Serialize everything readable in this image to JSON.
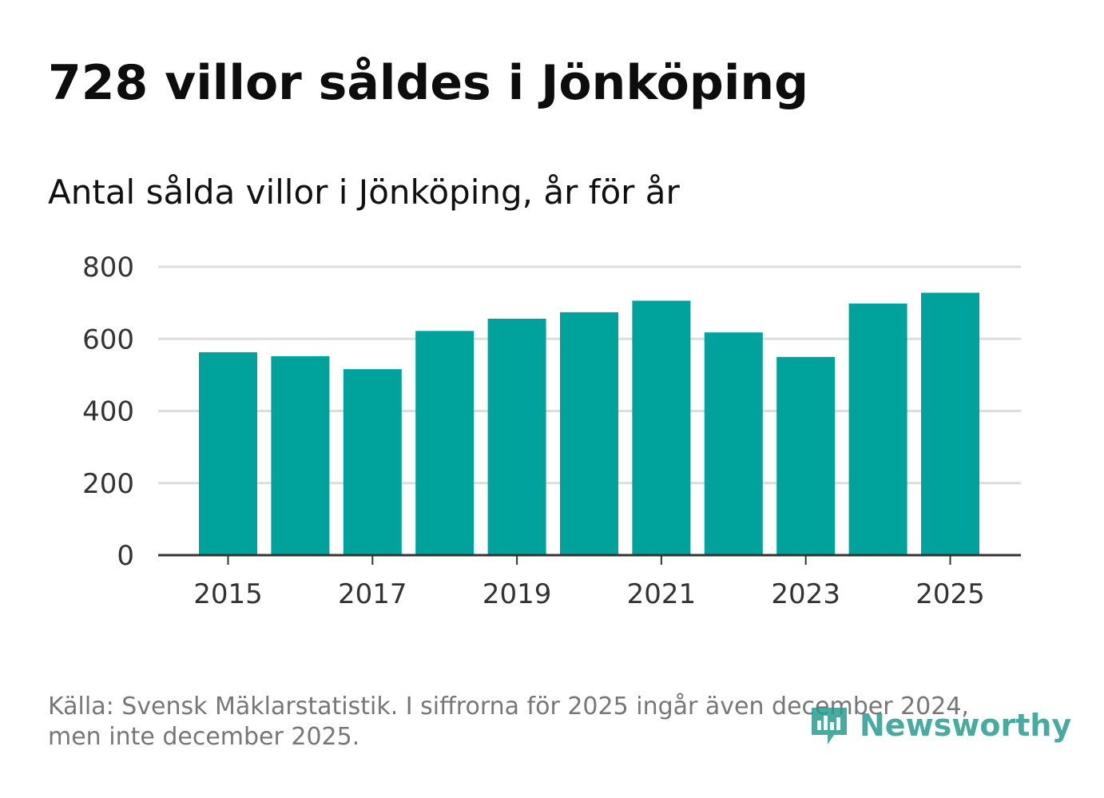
{
  "title": "728 villor såldes i Jönköping",
  "subtitle": "Antal sålda villor i Jönköping, år för år",
  "source": "Källa: Svensk Mäklarstatistik. I siffrorna för 2025 ingår även december 2024, men inte december 2025.",
  "logo_text": "Newsworthy",
  "colors": {
    "bar": "#00a39b",
    "grid": "#dddddd",
    "axis": "#333333",
    "logo": "#2a9d8f"
  },
  "chart_data": {
    "type": "bar",
    "title": "Antal sålda villor i Jönköping, år för år",
    "xlabel": "",
    "ylabel": "",
    "categories": [
      "2015",
      "2016",
      "2017",
      "2018",
      "2019",
      "2020",
      "2021",
      "2022",
      "2023",
      "2024",
      "2025"
    ],
    "values": [
      563,
      552,
      516,
      622,
      656,
      674,
      706,
      618,
      550,
      698,
      728
    ],
    "x_tick_labels": [
      "2015",
      "2017",
      "2019",
      "2021",
      "2023",
      "2025"
    ],
    "y_ticks": [
      0,
      200,
      400,
      600,
      800
    ],
    "ylim": [
      0,
      800
    ],
    "grid": true,
    "legend": "none"
  }
}
